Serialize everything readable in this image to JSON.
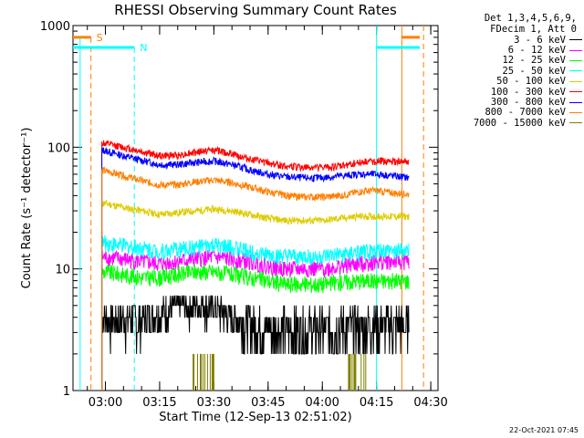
{
  "chart_data": {
    "type": "line",
    "title": "RHESSI Observing Summary Count Rates",
    "xlabel": "Start Time (12-Sep-13 02:51:02)",
    "ylabel": "Count Rate (s⁻¹ detector⁻¹)",
    "yscale": "log",
    "ylim": [
      1,
      1000
    ],
    "xlim_minutes_label": [
      "02:51",
      "04:32"
    ],
    "x_ticks": [
      "03:00",
      "03:15",
      "03:30",
      "03:45",
      "04:00",
      "04:15",
      "04:30"
    ],
    "y_ticks": [
      "1",
      "10",
      "100",
      "1000"
    ],
    "legend_header": [
      "Det 1,3,4,5,6,9,",
      "FDecim 1, Att 0"
    ],
    "data_start": "02:59",
    "data_end": "04:24",
    "series": [
      {
        "name": "3 - 6 keV",
        "color": "#000000",
        "x": [
          "02:59",
          "03:05",
          "03:10",
          "03:15",
          "03:20",
          "03:25",
          "03:30",
          "03:35",
          "03:40",
          "03:45",
          "03:50",
          "03:55",
          "04:00",
          "04:05",
          "04:10",
          "04:15",
          "04:20",
          "04:24"
        ],
        "values": [
          3.8,
          3.8,
          3.8,
          4.5,
          4.8,
          5.0,
          4.8,
          4.0,
          3.5,
          3.3,
          3.2,
          3.2,
          3.2,
          3.3,
          3.4,
          3.5,
          3.5,
          3.5
        ]
      },
      {
        "name": "6 - 12 keV",
        "color": "#ff00ff",
        "x": [
          "02:59",
          "03:05",
          "03:10",
          "03:15",
          "03:20",
          "03:25",
          "03:30",
          "03:35",
          "03:40",
          "03:45",
          "03:50",
          "03:55",
          "04:00",
          "04:05",
          "04:10",
          "04:15",
          "04:20",
          "04:24"
        ],
        "values": [
          12.5,
          12,
          11.5,
          11,
          11.5,
          12,
          12.5,
          12,
          11.5,
          10.5,
          10,
          10,
          10,
          10.5,
          11,
          11.5,
          11.5,
          11.5
        ]
      },
      {
        "name": "12 - 25 keV",
        "color": "#00ff00",
        "x": [
          "02:59",
          "03:05",
          "03:10",
          "03:15",
          "03:20",
          "03:25",
          "03:30",
          "03:35",
          "03:40",
          "03:45",
          "03:50",
          "03:55",
          "04:00",
          "04:05",
          "04:10",
          "04:15",
          "04:20",
          "04:24"
        ],
        "values": [
          9.5,
          9,
          8.5,
          8.5,
          9,
          9.5,
          9.5,
          9,
          8.5,
          8,
          7.5,
          7.5,
          7.5,
          7.8,
          8,
          8,
          8,
          8
        ]
      },
      {
        "name": "25 - 50 keV",
        "color": "#00ffff",
        "x": [
          "02:59",
          "03:05",
          "03:10",
          "03:15",
          "03:20",
          "03:25",
          "03:30",
          "03:35",
          "03:40",
          "03:45",
          "03:50",
          "03:55",
          "04:00",
          "04:05",
          "04:10",
          "04:15",
          "04:20",
          "04:24"
        ],
        "values": [
          16.5,
          15.5,
          15,
          14,
          14.5,
          15,
          15.5,
          15,
          14,
          13,
          12.5,
          12.5,
          12.5,
          13,
          13.5,
          14,
          14,
          14
        ]
      },
      {
        "name": "50 - 100 keV",
        "color": "#ddcc00",
        "x": [
          "02:59",
          "03:05",
          "03:10",
          "03:15",
          "03:20",
          "03:25",
          "03:30",
          "03:35",
          "03:40",
          "03:45",
          "03:50",
          "03:55",
          "04:00",
          "04:05",
          "04:10",
          "04:15",
          "04:20",
          "04:24"
        ],
        "values": [
          35,
          32,
          30,
          28,
          29,
          30,
          31,
          30,
          28,
          26,
          25,
          25,
          25,
          26,
          27,
          27,
          27,
          27
        ]
      },
      {
        "name": "100 - 300 keV",
        "color": "#ff0000",
        "x": [
          "02:59",
          "03:05",
          "03:10",
          "03:15",
          "03:20",
          "03:25",
          "03:30",
          "03:35",
          "03:40",
          "03:45",
          "03:50",
          "03:55",
          "04:00",
          "04:05",
          "04:10",
          "04:15",
          "04:20",
          "04:24"
        ],
        "values": [
          108,
          100,
          92,
          85,
          86,
          91,
          95,
          88,
          80,
          74,
          70,
          68,
          68,
          70,
          75,
          77,
          76,
          75
        ]
      },
      {
        "name": "300 - 800 keV",
        "color": "#0000ff",
        "x": [
          "02:59",
          "03:05",
          "03:10",
          "03:15",
          "03:20",
          "03:25",
          "03:30",
          "03:35",
          "03:40",
          "03:45",
          "03:50",
          "03:55",
          "04:00",
          "04:05",
          "04:10",
          "04:15",
          "04:20",
          "04:24"
        ],
        "values": [
          95,
          85,
          78,
          72,
          72,
          75,
          77,
          72,
          65,
          60,
          57,
          56,
          56,
          58,
          60,
          60,
          58,
          56
        ]
      },
      {
        "name": "800 - 7000 keV",
        "color": "#ff7f00",
        "x": [
          "02:59",
          "03:05",
          "03:10",
          "03:15",
          "03:20",
          "03:25",
          "03:30",
          "03:35",
          "03:40",
          "03:45",
          "03:50",
          "03:55",
          "04:00",
          "04:05",
          "04:10",
          "04:15",
          "04:20",
          "04:24"
        ],
        "values": [
          65,
          58,
          53,
          49,
          49,
          52,
          54,
          51,
          47,
          43,
          40,
          39,
          39,
          40,
          43,
          44,
          42,
          41
        ]
      },
      {
        "name": "7000 - 15000 keV",
        "color": "#808000",
        "x": [
          "03:27",
          "03:30",
          "04:09"
        ],
        "values": [
          2,
          2,
          2
        ]
      }
    ],
    "annotations": [
      {
        "label": "S",
        "color": "#ff7f00",
        "x": "02:56"
      },
      {
        "label": "N",
        "color": "#00ffff",
        "x": "03:08"
      }
    ],
    "intervals": [
      {
        "name": "saa",
        "label": "S",
        "color": "#ff7f00",
        "x": [
          "02:56",
          "04:22"
        ]
      },
      {
        "name": "night",
        "label": "N",
        "color": "#00ffff",
        "x": [
          "03:08",
          "04:15"
        ]
      }
    ],
    "footer_stamp": "22-Oct-2021 07:45",
    "grid": false
  }
}
